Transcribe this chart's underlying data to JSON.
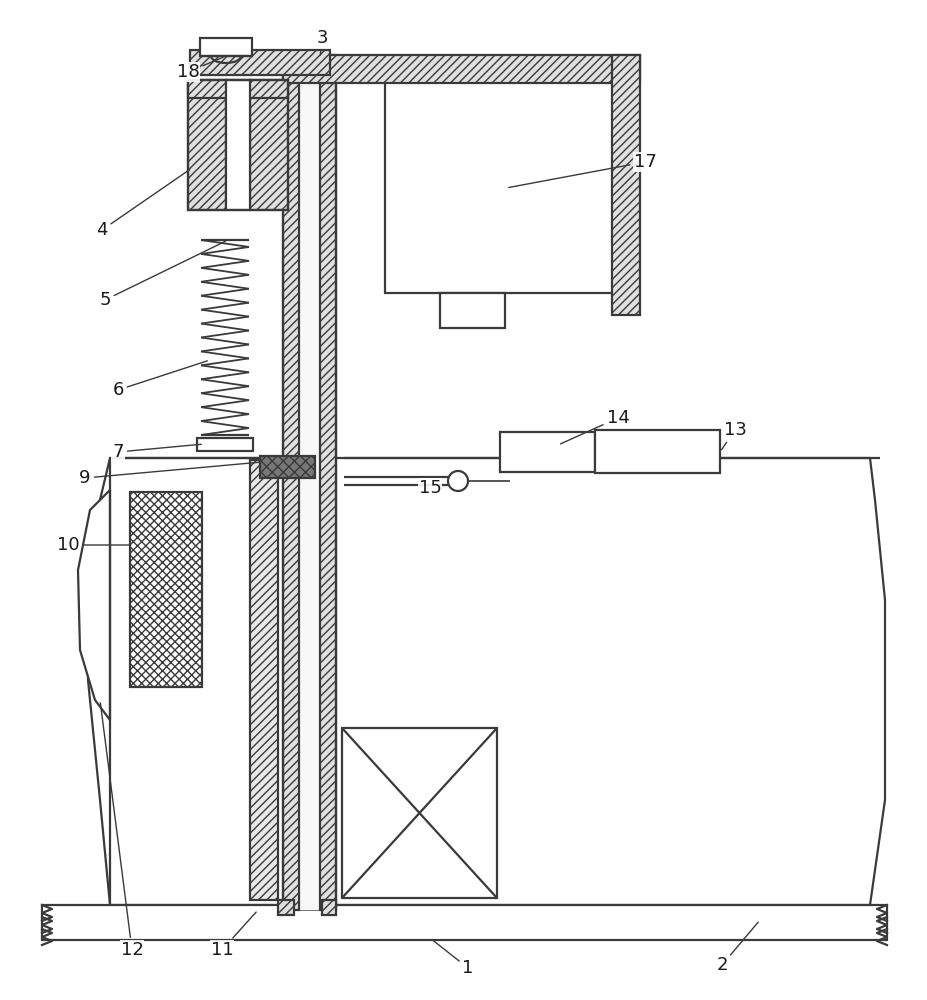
{
  "bg_color": "#ffffff",
  "line_color": "#3a3a3a",
  "label_color": "#1a1a1a",
  "label_fontsize": 13,
  "arrow_lw": 1.0,
  "draw_lw": 1.6
}
